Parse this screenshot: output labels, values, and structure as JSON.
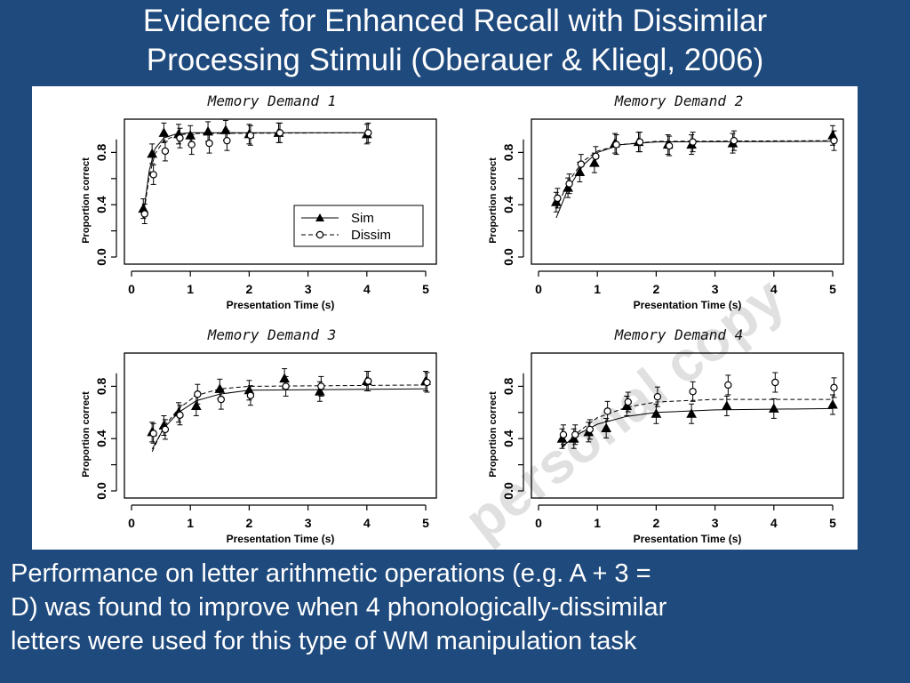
{
  "slide": {
    "title_line1": "Evidence for Enhanced Recall with Dissimilar",
    "title_line2": "Processing Stimuli (Oberauer & Kliegl, 2006)",
    "caption_line1": "Performance on letter arithmetic operations (e.g. A + 3 =",
    "caption_line2": "D) was found to improve when 4 phonologically-dissimilar",
    "caption_line3": "letters were used for this type of WM manipulation task",
    "watermark": "personal copy"
  },
  "colors": {
    "background": "#1f4a7d",
    "text": "#ffffff",
    "plot": "#000000"
  },
  "chart_data": [
    {
      "type": "scatter",
      "title": "Memory Demand 1",
      "xlabel": "Presentation Time (s)",
      "ylabel": "Proportion correct",
      "xlim": [
        0,
        5
      ],
      "ylim": [
        0,
        1
      ],
      "xticks": [
        "0",
        "1",
        "2",
        "3",
        "4",
        "5"
      ],
      "yticks": [
        "0.0",
        "0.4",
        "0.8"
      ],
      "legend": {
        "position": "center-right",
        "entries": [
          "Sim",
          "Dissim"
        ]
      },
      "series": [
        {
          "name": "Sim",
          "marker": "filled-triangle",
          "x": [
            0.2,
            0.35,
            0.55,
            0.8,
            1.0,
            1.3,
            1.6,
            2.0,
            2.5,
            4.0
          ],
          "y": [
            0.37,
            0.79,
            0.95,
            0.94,
            0.93,
            0.96,
            0.97,
            0.94,
            0.95,
            0.94
          ],
          "fit": [
            [
              0.2,
              0.32
            ],
            [
              0.3,
              0.66
            ],
            [
              0.4,
              0.83
            ],
            [
              0.55,
              0.91
            ],
            [
              0.75,
              0.94
            ],
            [
              1,
              0.95
            ],
            [
              4,
              0.95
            ]
          ]
        },
        {
          "name": "Dissim",
          "marker": "open-circle",
          "x": [
            0.2,
            0.35,
            0.55,
            0.8,
            1.0,
            1.3,
            1.6,
            2.0,
            2.5,
            4.0
          ],
          "y": [
            0.33,
            0.63,
            0.81,
            0.91,
            0.86,
            0.87,
            0.89,
            0.93,
            0.95,
            0.95
          ],
          "fit": [
            [
              0.2,
              0.3
            ],
            [
              0.3,
              0.62
            ],
            [
              0.4,
              0.79
            ],
            [
              0.55,
              0.89
            ],
            [
              0.75,
              0.93
            ],
            [
              1,
              0.945
            ],
            [
              4,
              0.95
            ]
          ]
        }
      ]
    },
    {
      "type": "scatter",
      "title": "Memory Demand 2",
      "xlabel": "Presentation Time (s)",
      "ylabel": "Proportion correct",
      "xlim": [
        0,
        5
      ],
      "ylim": [
        0,
        1
      ],
      "xticks": [
        "0",
        "1",
        "2",
        "3",
        "4",
        "5"
      ],
      "yticks": [
        "0.0",
        "0.4",
        "0.8"
      ],
      "series": [
        {
          "name": "Sim",
          "marker": "filled-triangle",
          "x": [
            0.3,
            0.5,
            0.7,
            0.95,
            1.3,
            1.7,
            2.2,
            2.6,
            3.3,
            5.0
          ],
          "y": [
            0.42,
            0.53,
            0.65,
            0.72,
            0.87,
            0.88,
            0.86,
            0.86,
            0.87,
            0.93
          ],
          "fit": [
            [
              0.3,
              0.3
            ],
            [
              0.5,
              0.52
            ],
            [
              0.75,
              0.7
            ],
            [
              1,
              0.8
            ],
            [
              1.4,
              0.86
            ],
            [
              2,
              0.88
            ],
            [
              5,
              0.885
            ]
          ]
        },
        {
          "name": "Dissim",
          "marker": "open-circle",
          "x": [
            0.3,
            0.5,
            0.7,
            0.95,
            1.3,
            1.7,
            2.2,
            2.6,
            3.3,
            5.0
          ],
          "y": [
            0.45,
            0.56,
            0.71,
            0.77,
            0.86,
            0.88,
            0.85,
            0.88,
            0.89,
            0.89
          ],
          "fit": [
            [
              0.3,
              0.37
            ],
            [
              0.5,
              0.57
            ],
            [
              0.75,
              0.73
            ],
            [
              1,
              0.81
            ],
            [
              1.4,
              0.86
            ],
            [
              2,
              0.885
            ],
            [
              5,
              0.89
            ]
          ]
        }
      ]
    },
    {
      "type": "scatter",
      "title": "Memory Demand 3",
      "xlabel": "Presentation Time (s)",
      "ylabel": "Proportion correct",
      "xlim": [
        0,
        5
      ],
      "ylim": [
        0,
        1
      ],
      "xticks": [
        "0",
        "1",
        "2",
        "3",
        "4",
        "5"
      ],
      "yticks": [
        "0.0",
        "0.4",
        "0.8"
      ],
      "series": [
        {
          "name": "Sim",
          "marker": "filled-triangle",
          "x": [
            0.35,
            0.55,
            0.8,
            1.1,
            1.5,
            2.0,
            2.6,
            3.2,
            4.0,
            5.0
          ],
          "y": [
            0.45,
            0.5,
            0.6,
            0.65,
            0.78,
            0.77,
            0.86,
            0.76,
            0.84,
            0.84
          ],
          "fit": [
            [
              0.35,
              0.32
            ],
            [
              0.55,
              0.48
            ],
            [
              0.8,
              0.6
            ],
            [
              1.1,
              0.69
            ],
            [
              1.5,
              0.74
            ],
            [
              2,
              0.77
            ],
            [
              5,
              0.78
            ]
          ]
        },
        {
          "name": "Dissim",
          "marker": "open-circle",
          "x": [
            0.35,
            0.55,
            0.8,
            1.1,
            1.5,
            2.0,
            2.6,
            3.2,
            4.0,
            5.0
          ],
          "y": [
            0.44,
            0.47,
            0.58,
            0.74,
            0.7,
            0.73,
            0.8,
            0.8,
            0.84,
            0.83
          ],
          "fit": [
            [
              0.35,
              0.3
            ],
            [
              0.55,
              0.49
            ],
            [
              0.8,
              0.63
            ],
            [
              1.1,
              0.73
            ],
            [
              1.5,
              0.78
            ],
            [
              2,
              0.8
            ],
            [
              5,
              0.81
            ]
          ]
        }
      ]
    },
    {
      "type": "scatter",
      "title": "Memory Demand 4",
      "xlabel": "Presentation Time (s)",
      "ylabel": "Proportion correct",
      "xlim": [
        0,
        5
      ],
      "ylim": [
        0,
        1
      ],
      "xticks": [
        "0",
        "1",
        "2",
        "3",
        "4",
        "5"
      ],
      "yticks": [
        "0.0",
        "0.4",
        "0.8"
      ],
      "series": [
        {
          "name": "Sim",
          "marker": "filled-triangle",
          "x": [
            0.4,
            0.6,
            0.85,
            1.15,
            1.5,
            2.0,
            2.6,
            3.2,
            4.0,
            5.0
          ],
          "y": [
            0.4,
            0.4,
            0.45,
            0.48,
            0.65,
            0.59,
            0.59,
            0.65,
            0.63,
            0.66
          ],
          "fit": [
            [
              0.4,
              0.34
            ],
            [
              0.7,
              0.44
            ],
            [
              1,
              0.51
            ],
            [
              1.5,
              0.57
            ],
            [
              2,
              0.6
            ],
            [
              3,
              0.62
            ],
            [
              5,
              0.63
            ]
          ]
        },
        {
          "name": "Dissim",
          "marker": "open-circle",
          "x": [
            0.4,
            0.6,
            0.85,
            1.15,
            1.5,
            2.0,
            2.6,
            3.2,
            4.0,
            5.0
          ],
          "y": [
            0.43,
            0.43,
            0.47,
            0.61,
            0.68,
            0.72,
            0.76,
            0.81,
            0.83,
            0.79
          ],
          "fit": [
            [
              0.4,
              0.33
            ],
            [
              0.7,
              0.46
            ],
            [
              1,
              0.56
            ],
            [
              1.5,
              0.64
            ],
            [
              2,
              0.68
            ],
            [
              3,
              0.7
            ],
            [
              5,
              0.7
            ]
          ]
        }
      ]
    }
  ]
}
